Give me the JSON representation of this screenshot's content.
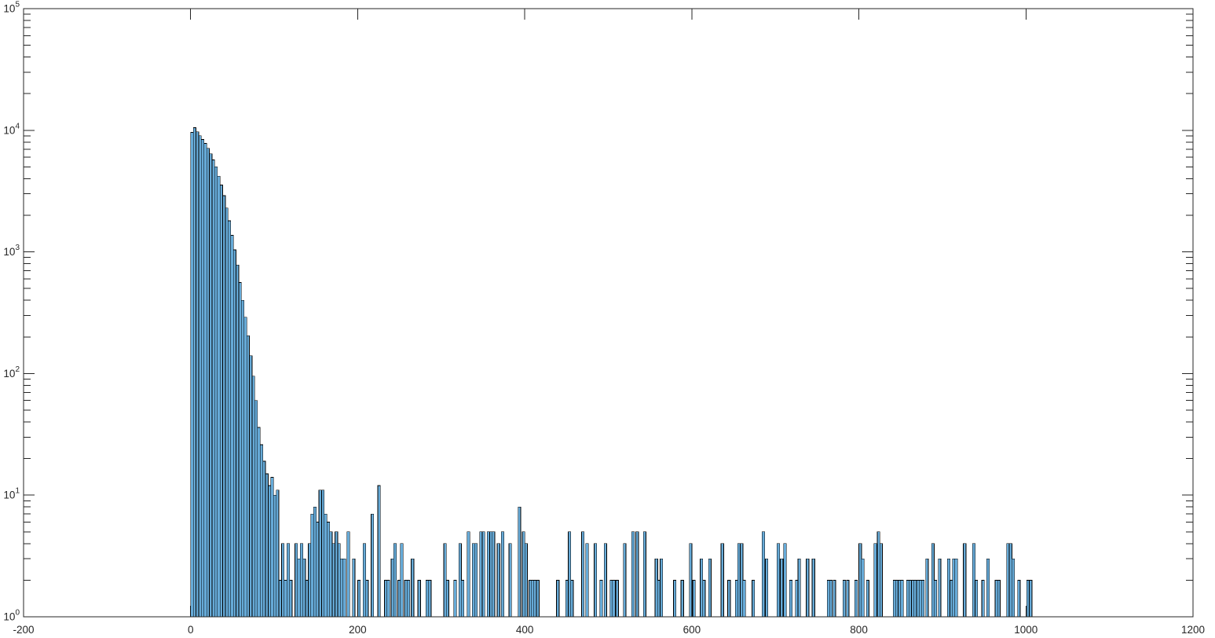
{
  "figure": {
    "background": "#ffffff",
    "axis_color": "#262626",
    "tick_label_color": "#3a3a3a",
    "bar_fill": "#66AAD7",
    "bar_edge": "#000000"
  },
  "chart_data": {
    "type": "bar",
    "subtype": "histogram",
    "title": "",
    "xlabel": "",
    "ylabel": "",
    "grid": false,
    "legend_position": "none",
    "y_scale": "log",
    "xlim": [
      -200,
      1200
    ],
    "ylim": [
      1,
      100000
    ],
    "x_ticks": [
      -200,
      0,
      200,
      400,
      600,
      800,
      1000,
      1200
    ],
    "y_tick_base": "10",
    "y_tick_exponents": [
      0,
      1,
      2,
      3,
      4,
      5
    ],
    "bin_width": 3.2,
    "bars": [
      [
        0,
        9600
      ],
      [
        3.2,
        10500
      ],
      [
        6.4,
        9700
      ],
      [
        9.6,
        9000
      ],
      [
        12.8,
        8400
      ],
      [
        16,
        7800
      ],
      [
        19.2,
        7100
      ],
      [
        22.4,
        6400
      ],
      [
        25.6,
        5700
      ],
      [
        28.8,
        5000
      ],
      [
        32,
        4200
      ],
      [
        35.2,
        3550
      ],
      [
        38.4,
        2900
      ],
      [
        41.6,
        2300
      ],
      [
        44.8,
        1800
      ],
      [
        48,
        1370
      ],
      [
        51.2,
        1040
      ],
      [
        54.4,
        780
      ],
      [
        57.6,
        560
      ],
      [
        60.8,
        400
      ],
      [
        64,
        290
      ],
      [
        67.2,
        205
      ],
      [
        70.4,
        140
      ],
      [
        73.6,
        95
      ],
      [
        76.8,
        60
      ],
      [
        80,
        36
      ],
      [
        83.2,
        26
      ],
      [
        86.4,
        19
      ],
      [
        89.6,
        15
      ],
      [
        92.8,
        12
      ],
      [
        96,
        14
      ],
      [
        99.2,
        10
      ],
      [
        102.4,
        11
      ],
      [
        105.6,
        2
      ],
      [
        108.8,
        4
      ],
      [
        112,
        2
      ],
      [
        115.2,
        4
      ],
      [
        118.4,
        2
      ],
      [
        124.8,
        4
      ],
      [
        128,
        3
      ],
      [
        131.2,
        4
      ],
      [
        134.4,
        3
      ],
      [
        137.6,
        2
      ],
      [
        140.8,
        4
      ],
      [
        144,
        7
      ],
      [
        147.2,
        8
      ],
      [
        150.4,
        6
      ],
      [
        153.6,
        11
      ],
      [
        156.8,
        11
      ],
      [
        160,
        7
      ],
      [
        163.2,
        6
      ],
      [
        166.4,
        5
      ],
      [
        169.6,
        4
      ],
      [
        172.8,
        5
      ],
      [
        176,
        4
      ],
      [
        179.2,
        3
      ],
      [
        182.4,
        3
      ],
      [
        187.2,
        5
      ],
      [
        193.6,
        3
      ],
      [
        200,
        2
      ],
      [
        206.4,
        4
      ],
      [
        209.6,
        2
      ],
      [
        216,
        7
      ],
      [
        224,
        12
      ],
      [
        232,
        2
      ],
      [
        235.2,
        2
      ],
      [
        240,
        3
      ],
      [
        243.2,
        4
      ],
      [
        248,
        2
      ],
      [
        251.2,
        4
      ],
      [
        256,
        2
      ],
      [
        259.2,
        2
      ],
      [
        264,
        3
      ],
      [
        272,
        2
      ],
      [
        281.6,
        2
      ],
      [
        284.8,
        2
      ],
      [
        303,
        4
      ],
      [
        306,
        2
      ],
      [
        315,
        2
      ],
      [
        321,
        4
      ],
      [
        324,
        2
      ],
      [
        331,
        5
      ],
      [
        337,
        4
      ],
      [
        340,
        4
      ],
      [
        346,
        5
      ],
      [
        349,
        5
      ],
      [
        355,
        5
      ],
      [
        358,
        5
      ],
      [
        361,
        5
      ],
      [
        367,
        4
      ],
      [
        372,
        5
      ],
      [
        381,
        4
      ],
      [
        392,
        8
      ],
      [
        397,
        5
      ],
      [
        400,
        4
      ],
      [
        405,
        2
      ],
      [
        408,
        2
      ],
      [
        411,
        2
      ],
      [
        414,
        2
      ],
      [
        438,
        2
      ],
      [
        449,
        2
      ],
      [
        452,
        5
      ],
      [
        455,
        2
      ],
      [
        468,
        5
      ],
      [
        473,
        4
      ],
      [
        483,
        4
      ],
      [
        490,
        2
      ],
      [
        495,
        4
      ],
      [
        502,
        2
      ],
      [
        505,
        2
      ],
      [
        509,
        2
      ],
      [
        518,
        4
      ],
      [
        528,
        5
      ],
      [
        533,
        5
      ],
      [
        542,
        5
      ],
      [
        556,
        3
      ],
      [
        559,
        2
      ],
      [
        562,
        3
      ],
      [
        578,
        2
      ],
      [
        587,
        2
      ],
      [
        597,
        4
      ],
      [
        601,
        2
      ],
      [
        610,
        3
      ],
      [
        613,
        2
      ],
      [
        620,
        3
      ],
      [
        635,
        4
      ],
      [
        643,
        2
      ],
      [
        652,
        2
      ],
      [
        655,
        4
      ],
      [
        658,
        4
      ],
      [
        661,
        2
      ],
      [
        672,
        2
      ],
      [
        684,
        5
      ],
      [
        688,
        3
      ],
      [
        702,
        4
      ],
      [
        706,
        3
      ],
      [
        710,
        4
      ],
      [
        717,
        2
      ],
      [
        724,
        2
      ],
      [
        727,
        3
      ],
      [
        737,
        3
      ],
      [
        744,
        3
      ],
      [
        762,
        2
      ],
      [
        765,
        2
      ],
      [
        769,
        2
      ],
      [
        781,
        2
      ],
      [
        785,
        2
      ],
      [
        795,
        2
      ],
      [
        800,
        4
      ],
      [
        803,
        3
      ],
      [
        809,
        2
      ],
      [
        818,
        4
      ],
      [
        822,
        5
      ],
      [
        825,
        4
      ],
      [
        841,
        2
      ],
      [
        844,
        2
      ],
      [
        847,
        2
      ],
      [
        850,
        2
      ],
      [
        857,
        2
      ],
      [
        860,
        2
      ],
      [
        863,
        2
      ],
      [
        866,
        2
      ],
      [
        869,
        2
      ],
      [
        872,
        2
      ],
      [
        875,
        2
      ],
      [
        880,
        3
      ],
      [
        887,
        4
      ],
      [
        890,
        2
      ],
      [
        895,
        3
      ],
      [
        906,
        3
      ],
      [
        909,
        2
      ],
      [
        912,
        3
      ],
      [
        915,
        3
      ],
      [
        925,
        4
      ],
      [
        936,
        4
      ],
      [
        939,
        2
      ],
      [
        947,
        2
      ],
      [
        953,
        3
      ],
      [
        963,
        2
      ],
      [
        966,
        2
      ],
      [
        977,
        4
      ],
      [
        980,
        4
      ],
      [
        983,
        3
      ],
      [
        990,
        2
      ],
      [
        1001,
        2
      ],
      [
        1004,
        2
      ]
    ]
  }
}
